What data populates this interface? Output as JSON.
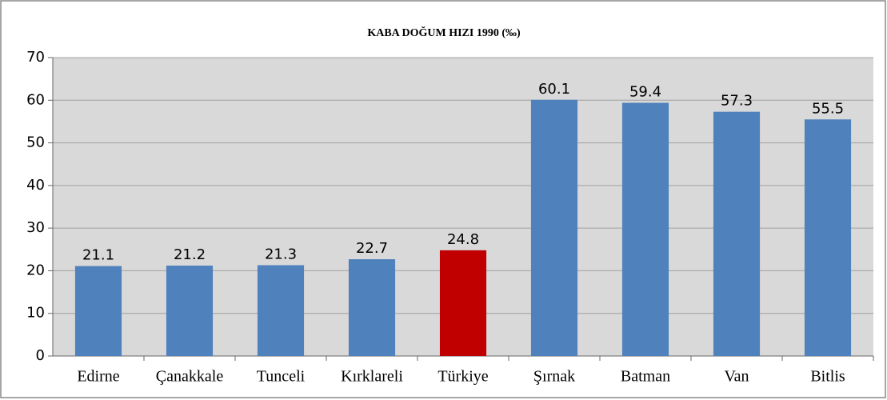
{
  "chart_data": {
    "type": "bar",
    "title": "KABA DOĞUM HIZI 1990 (‰)",
    "categories": [
      "Edirne",
      "Çanakkale",
      "Tunceli",
      "Kırklareli",
      "Türkiye",
      "Şırnak",
      "Batman",
      "Van",
      "Bitlis"
    ],
    "values": [
      21.1,
      21.2,
      21.3,
      22.7,
      24.8,
      60.1,
      59.4,
      57.3,
      55.5
    ],
    "colors": [
      "#4f81bd",
      "#4f81bd",
      "#4f81bd",
      "#4f81bd",
      "#c00000",
      "#4f81bd",
      "#4f81bd",
      "#4f81bd",
      "#4f81bd"
    ],
    "ylim": [
      0,
      70
    ],
    "yticks": [
      0,
      10,
      20,
      30,
      40,
      50,
      60,
      70
    ],
    "grid": true
  }
}
